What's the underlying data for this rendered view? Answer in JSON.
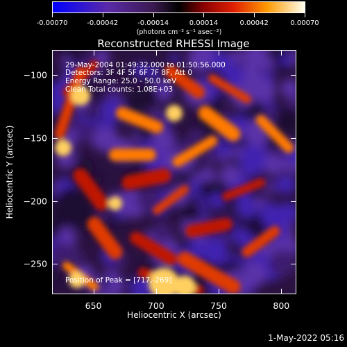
{
  "colorbar": {
    "tick_labels": [
      "-0.00070",
      "-0.00042",
      "-0.00014",
      "0.00014",
      "0.00042",
      "0.00070"
    ],
    "units": "(photons cm⁻² s⁻¹ asec⁻²)"
  },
  "title": "Reconstructed RHESSI Image",
  "annotations": {
    "time": "29-May-2004 01:49:32.000 to 01:50:56.000",
    "detectors": "Detectors: 3F 4F 5F 6F 7F 8F, Att 0",
    "energy": "Energy Range: 25.0 - 50.0 keV",
    "method": "Clean     Total counts: 1.08E+03",
    "peak": "Position of Peak = [717,-269]"
  },
  "footer": "1-May-2022 05:16",
  "chart_data": {
    "type": "heatmap",
    "title": "Reconstructed RHESSI Image",
    "xlabel": "Heliocentric X (arcsec)",
    "ylabel": "Heliocentric Y (arcsec)",
    "xlim": [
      617,
      812
    ],
    "ylim": [
      -274,
      -80
    ],
    "x_ticks": [
      650,
      700,
      750,
      800
    ],
    "y_ticks": [
      -100,
      -150,
      -200,
      -250
    ],
    "colorbar_range": [
      -0.0007,
      0.0007
    ],
    "colormap": "RHESSI blue-purple-black-red-yellow-white",
    "peak_position": [
      717,
      -269
    ]
  }
}
